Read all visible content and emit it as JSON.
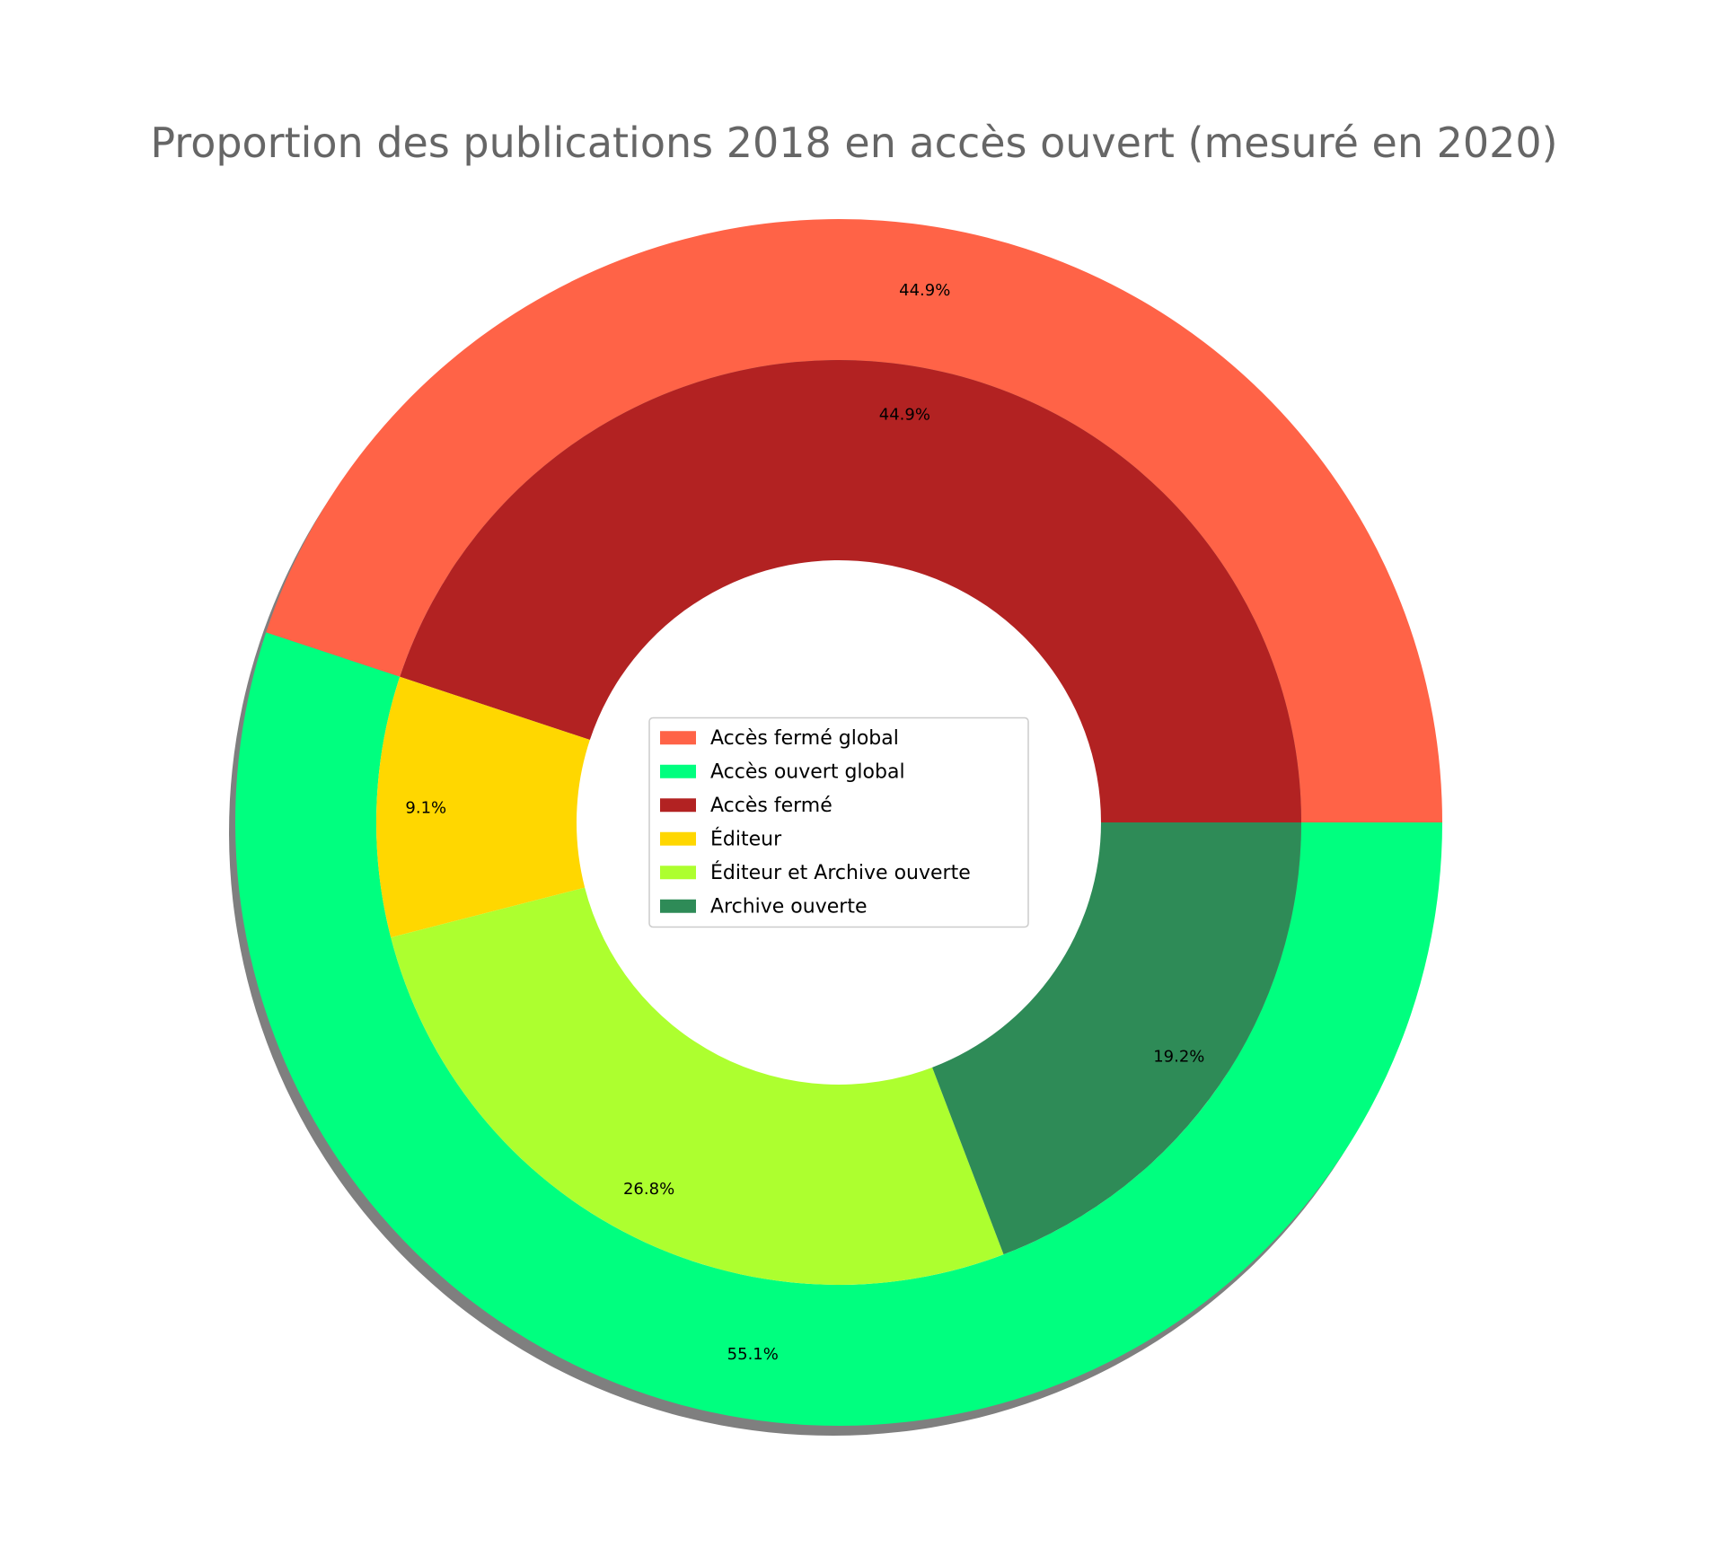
{
  "chart_data": {
    "type": "pie",
    "variant": "nested-donut",
    "title": "Proportion des publications 2018 en accès ouvert (mesuré en 2020)",
    "start_angle_deg": 0,
    "direction": "counterclockwise",
    "outer_ring": {
      "shadow": true,
      "slices": [
        {
          "label": "Accès fermé global",
          "value": 44.9,
          "pct_label": "44.9%",
          "color": "#FF6347"
        },
        {
          "label": "Accès ouvert global",
          "value": 55.1,
          "pct_label": "55.1%",
          "color": "#00FF7F"
        }
      ]
    },
    "inner_ring": {
      "slices": [
        {
          "label": "Accès fermé",
          "value": 44.9,
          "pct_label": "44.9%",
          "color": "#B22222"
        },
        {
          "label": "Éditeur",
          "value": 9.1,
          "pct_label": "9.1%",
          "color": "#FFD700"
        },
        {
          "label": "Éditeur et Archive ouverte",
          "value": 26.8,
          "pct_label": "26.8%",
          "color": "#ADFF2F"
        },
        {
          "label": "Archive ouverte",
          "value": 19.2,
          "pct_label": "19.2%",
          "color": "#2E8B57"
        }
      ]
    },
    "legend": {
      "placement": "center",
      "entries": [
        {
          "label": "Accès fermé global",
          "color": "#FF6347"
        },
        {
          "label": "Accès ouvert global",
          "color": "#00FF7F"
        },
        {
          "label": "Accès fermé",
          "color": "#B22222"
        },
        {
          "label": "Éditeur",
          "color": "#FFD700"
        },
        {
          "label": "Éditeur et Archive ouverte",
          "color": "#ADFF2F"
        },
        {
          "label": "Archive ouverte",
          "color": "#2E8B57"
        }
      ]
    }
  }
}
